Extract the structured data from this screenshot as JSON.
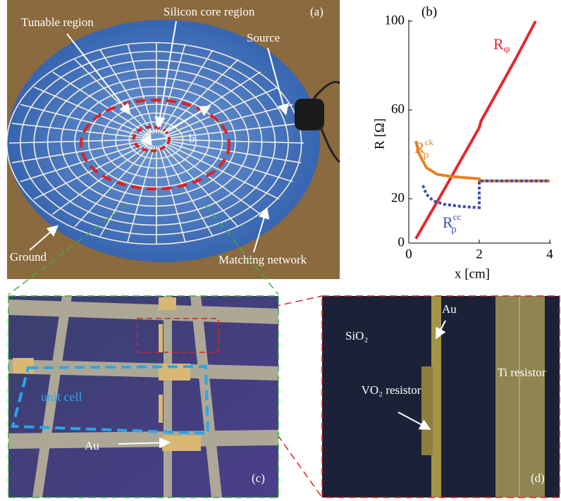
{
  "panel_a": {
    "label": "(a)",
    "annotations": [
      "Tunable region",
      "Silicon core region",
      "Source",
      "a",
      "b",
      "Ground",
      "Matching network"
    ]
  },
  "chart_data": {
    "type": "line",
    "label": "(b)",
    "x_label": "x [cm]",
    "y_label": "R [Ω]",
    "xlim": [
      0,
      4
    ],
    "xticks": [
      0,
      2,
      4
    ],
    "ylim": [
      0,
      100
    ],
    "yticks": [
      0,
      20,
      60,
      100
    ],
    "series": [
      {
        "name": "R",
        "subscript": "φ",
        "color": "#e8262b",
        "style": "solid",
        "x": [
          0.2,
          1,
          1.5,
          2,
          2.05,
          3,
          3.6
        ],
        "values": [
          2,
          24,
          38,
          52,
          55,
          82,
          100
        ]
      },
      {
        "name": "R",
        "subscript": "ρ",
        "superscript": "ck",
        "color": "#e8821f",
        "style": "solid",
        "x": [
          0.2,
          0.3,
          0.5,
          0.8,
          1.2,
          1.6,
          2,
          2,
          4
        ],
        "values": [
          46,
          40,
          34,
          31,
          30,
          29.5,
          29,
          28,
          28
        ]
      },
      {
        "name": "R",
        "subscript": "ρ",
        "superscript": "cc",
        "color": "#3a4fb5",
        "style": "dotted",
        "x": [
          0.4,
          0.5,
          0.7,
          1,
          1.5,
          1.95,
          2,
          2,
          4
        ],
        "values": [
          26,
          22,
          19,
          17.5,
          16.5,
          16,
          16,
          28,
          28
        ]
      }
    ]
  },
  "panel_c": {
    "label": "(c)",
    "annotations": [
      "unit cell",
      "Au"
    ]
  },
  "panel_d": {
    "label": "(d)",
    "annotations": [
      "SiO₂",
      "Au",
      "VO₂ resistor",
      "Ti resistor"
    ]
  }
}
